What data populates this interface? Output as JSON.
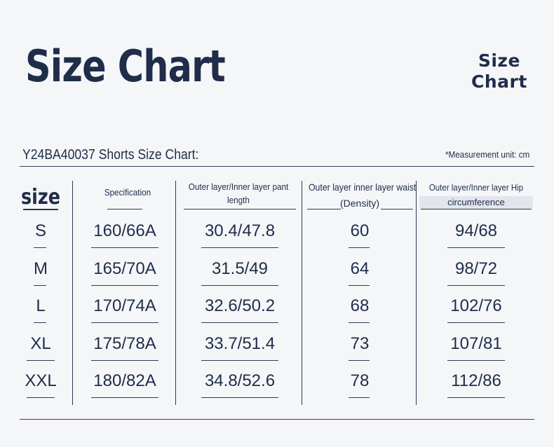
{
  "title": "Size Chart",
  "logo": {
    "line1": "Size",
    "line2": "Chart"
  },
  "subtitle": "Y24BA40037 Shorts Size Chart:",
  "unit_note": "*Measurement unit: cm",
  "headers": {
    "size": "size",
    "spec": "Specification",
    "pant_length": [
      "Outer layer/Inner layer pant",
      "length"
    ],
    "waist": [
      "Outer layer inner layer waist",
      "(Density)"
    ],
    "hip": [
      "Outer layer/Inner layer Hip",
      "circumference"
    ]
  },
  "rows": [
    {
      "size": "S",
      "spec": "160/66A",
      "length": "30.4/47.8",
      "waist": "60",
      "hip": "94/68"
    },
    {
      "size": "M",
      "spec": "165/70A",
      "length": "31.5/49",
      "waist": "64",
      "hip": "98/72"
    },
    {
      "size": "L",
      "spec": "170/74A",
      "length": "32.6/50.2",
      "waist": "68",
      "hip": "102/76"
    },
    {
      "size": "XL",
      "spec": "175/78A",
      "length": "33.7/51.4",
      "waist": "73",
      "hip": "107/81"
    },
    {
      "size": "XXL",
      "spec": "180/82A",
      "length": "34.8/52.6",
      "waist": "78",
      "hip": "112/86"
    }
  ]
}
